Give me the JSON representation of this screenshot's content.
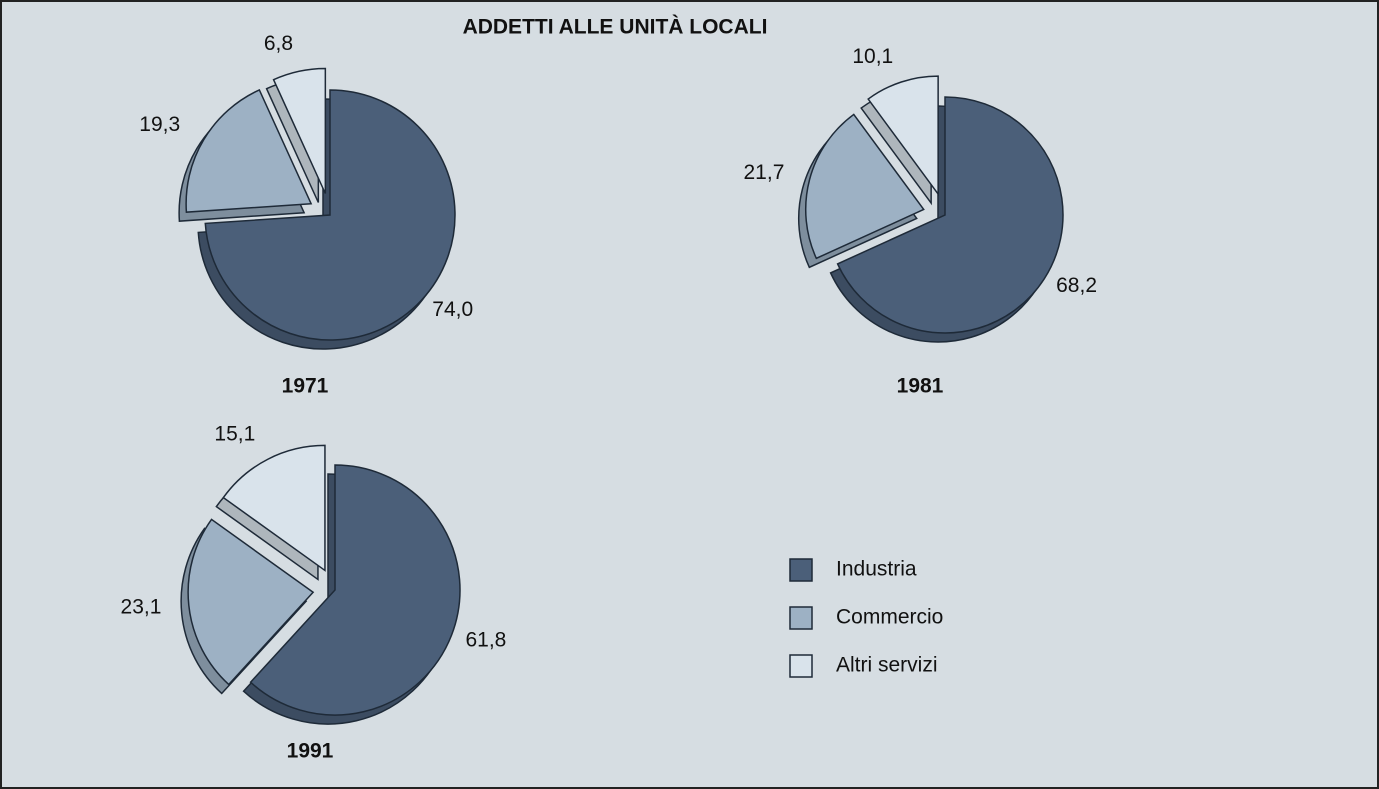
{
  "title": "ADDETTI ALLE UNITÀ LOCALI",
  "chart_data": [
    {
      "type": "pie",
      "title": "1971",
      "categories": [
        "Industria",
        "Commercio",
        "Altri servizi"
      ],
      "values": [
        74.0,
        19.3,
        6.8
      ],
      "value_labels": [
        "74,0",
        "19,3",
        "6,8"
      ],
      "colors": [
        "#4b5f79",
        "#9db1c4",
        "#d9e3eb"
      ]
    },
    {
      "type": "pie",
      "title": "1981",
      "categories": [
        "Industria",
        "Commercio",
        "Altri servizi"
      ],
      "values": [
        68.2,
        21.7,
        10.1
      ],
      "value_labels": [
        "68,2",
        "21,7",
        "10,1"
      ],
      "colors": [
        "#4b5f79",
        "#9db1c4",
        "#d9e3eb"
      ]
    },
    {
      "type": "pie",
      "title": "1991",
      "categories": [
        "Industria",
        "Commercio",
        "Altri servizi"
      ],
      "values": [
        61.8,
        23.1,
        15.1
      ],
      "value_labels": [
        "61,8",
        "23,1",
        "15,1"
      ],
      "colors": [
        "#4b5f79",
        "#9db1c4",
        "#d9e3eb"
      ]
    }
  ]
}
